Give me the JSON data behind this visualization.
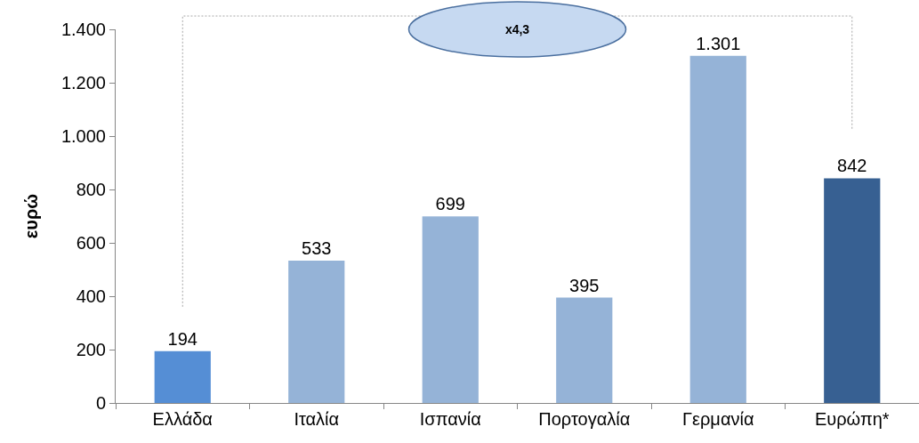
{
  "chart_data": {
    "type": "bar",
    "ylabel": "ευρώ",
    "categories": [
      "Ελλάδα",
      "Ιταλία",
      "Ισπανία",
      "Πορτογαλία",
      "Γερμανία",
      "Ευρώπη*"
    ],
    "values": [
      194,
      533,
      699,
      395,
      1301,
      842
    ],
    "value_labels": [
      "194",
      "533",
      "699",
      "395",
      "1.301",
      "842"
    ],
    "colors": [
      "#558ed5",
      "#95b3d7",
      "#95b3d7",
      "#95b3d7",
      "#95b3d7",
      "#376092"
    ],
    "ylim": [
      0,
      1400
    ],
    "yticks": [
      0,
      {
        "value": 200,
        "label": "200"
      },
      {
        "value": 400,
        "label": "400"
      },
      {
        "value": 600,
        "label": "600"
      },
      {
        "value": 800,
        "label": "800"
      },
      {
        "value": 1000,
        "label": "1.000"
      },
      {
        "value": 1200,
        "label": "1.200"
      },
      {
        "value": 1400,
        "label": "1.400"
      }
    ],
    "grid": false,
    "legend": false,
    "annotations": [
      "x4,3"
    ]
  }
}
